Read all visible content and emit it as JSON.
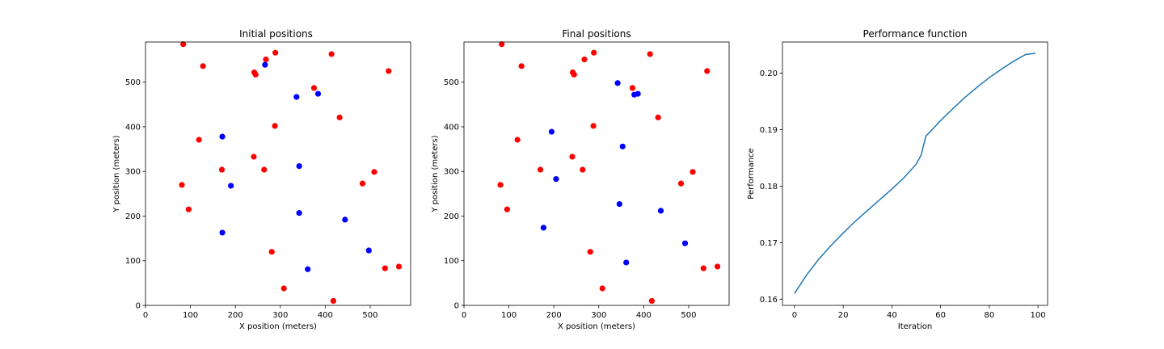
{
  "chart_data": [
    {
      "type": "scatter",
      "title": "Initial positions",
      "xlabel": "X position (meters)",
      "ylabel": "Y position (meters)",
      "xlim": [
        0,
        590
      ],
      "ylim": [
        0,
        590
      ],
      "xticks": [
        0,
        100,
        200,
        300,
        400,
        500
      ],
      "yticks": [
        0,
        100,
        200,
        300,
        400,
        500
      ],
      "series": [
        {
          "color": "#ff0000",
          "points": [
            [
              84,
              585
            ],
            [
              128,
              536
            ],
            [
              268,
              551
            ],
            [
              289,
              566
            ],
            [
              414,
              563
            ],
            [
              242,
              522
            ],
            [
              245,
              517
            ],
            [
              541,
              525
            ],
            [
              375,
              487
            ],
            [
              432,
              421
            ],
            [
              288,
              402
            ],
            [
              119,
              371
            ],
            [
              170,
              304
            ],
            [
              241,
              333
            ],
            [
              264,
              304
            ],
            [
              509,
              299
            ],
            [
              81,
              270
            ],
            [
              483,
              273
            ],
            [
              96,
              215
            ],
            [
              281,
              120
            ],
            [
              308,
              38
            ],
            [
              533,
              83
            ],
            [
              564,
              87
            ],
            [
              418,
              10
            ]
          ]
        },
        {
          "color": "#0000ff",
          "points": [
            [
              266,
              539
            ],
            [
              336,
              467
            ],
            [
              384,
              474
            ],
            [
              171,
              378
            ],
            [
              342,
              312
            ],
            [
              190,
              268
            ],
            [
              342,
              207
            ],
            [
              444,
              192
            ],
            [
              171,
              163
            ],
            [
              497,
              123
            ],
            [
              361,
              81
            ]
          ]
        }
      ]
    },
    {
      "type": "scatter",
      "title": "Final positions",
      "xlabel": "X position (meters)",
      "ylabel": "Y position (meters)",
      "xlim": [
        0,
        590
      ],
      "ylim": [
        0,
        590
      ],
      "xticks": [
        0,
        100,
        200,
        300,
        400,
        500
      ],
      "yticks": [
        0,
        100,
        200,
        300,
        400,
        500
      ],
      "series": [
        {
          "color": "#ff0000",
          "points": [
            [
              84,
              585
            ],
            [
              128,
              536
            ],
            [
              268,
              551
            ],
            [
              289,
              566
            ],
            [
              414,
              563
            ],
            [
              242,
              522
            ],
            [
              245,
              517
            ],
            [
              541,
              525
            ],
            [
              375,
              487
            ],
            [
              432,
              421
            ],
            [
              288,
              402
            ],
            [
              119,
              371
            ],
            [
              170,
              304
            ],
            [
              241,
              333
            ],
            [
              264,
              304
            ],
            [
              509,
              299
            ],
            [
              81,
              270
            ],
            [
              483,
              273
            ],
            [
              96,
              215
            ],
            [
              281,
              120
            ],
            [
              308,
              38
            ],
            [
              533,
              83
            ],
            [
              564,
              87
            ],
            [
              418,
              10
            ]
          ]
        },
        {
          "color": "#0000ff",
          "points": [
            [
              342,
              498
            ],
            [
              379,
              472
            ],
            [
              387,
              474
            ],
            [
              195,
              389
            ],
            [
              353,
              356
            ],
            [
              205,
              283
            ],
            [
              346,
              227
            ],
            [
              438,
              212
            ],
            [
              177,
              174
            ],
            [
              492,
              139
            ],
            [
              361,
              96
            ]
          ]
        }
      ]
    },
    {
      "type": "line",
      "title": "Performance function",
      "xlabel": "Iteration",
      "ylabel": "Performance",
      "xlim": [
        -4.95,
        103.95
      ],
      "ylim": [
        0.1589,
        0.2055
      ],
      "xticks": [
        0,
        20,
        40,
        60,
        80,
        100
      ],
      "yticks": [
        0.16,
        0.17,
        0.18,
        0.19,
        0.2
      ],
      "series": [
        {
          "color": "#1f77b4",
          "x": [
            0,
            5,
            10,
            15,
            20,
            25,
            30,
            35,
            40,
            45,
            50,
            52,
            54,
            55,
            60,
            65,
            70,
            75,
            80,
            85,
            90,
            95,
            99
          ],
          "y": [
            0.161,
            0.1643,
            0.1671,
            0.1695,
            0.1717,
            0.1738,
            0.1757,
            0.1776,
            0.1795,
            0.1815,
            0.1839,
            0.1855,
            0.1889,
            0.1893,
            0.1916,
            0.1937,
            0.1957,
            0.1975,
            0.1992,
            0.2007,
            0.2021,
            0.2033,
            0.2035
          ]
        }
      ]
    }
  ]
}
